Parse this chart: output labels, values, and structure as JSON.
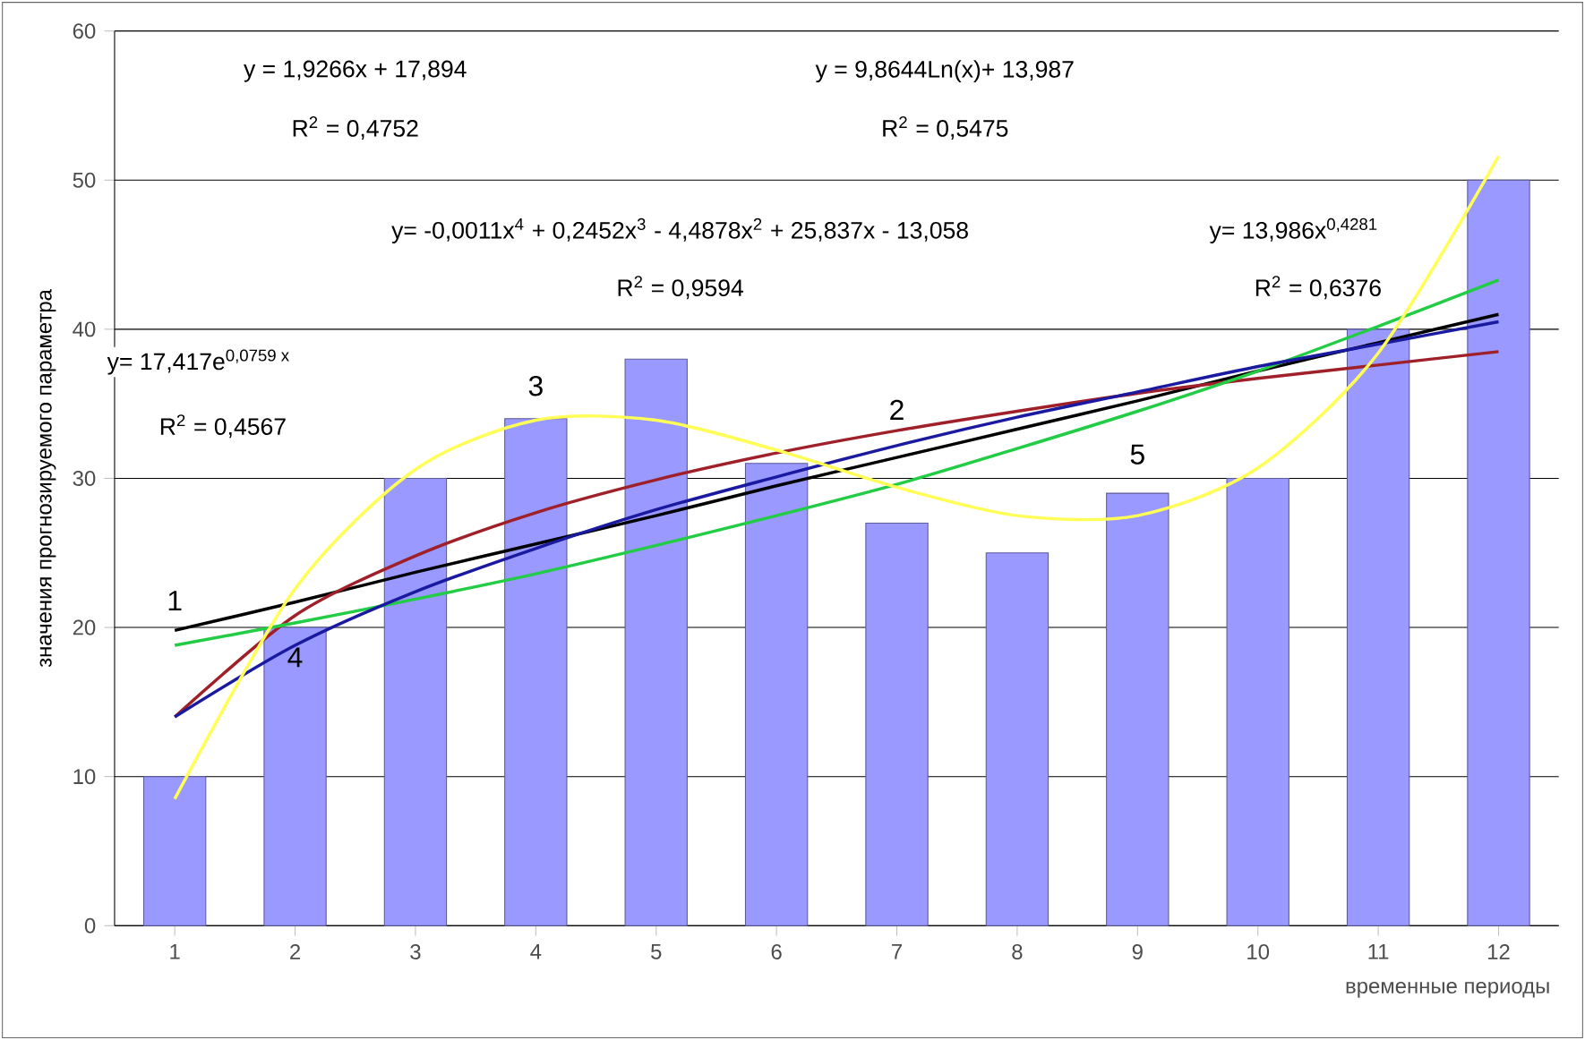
{
  "chart_data": {
    "type": "bar",
    "xlabel": "временные периоды",
    "ylabel": "значения прогнозируемого параметра",
    "categories": [
      "1",
      "2",
      "3",
      "4",
      "5",
      "6",
      "7",
      "8",
      "9",
      "10",
      "11",
      "12"
    ],
    "series": [
      {
        "color": "#9999ff",
        "values": [
          10,
          20,
          30,
          34,
          38,
          31,
          27,
          25,
          29,
          30,
          40,
          50
        ]
      },
      {
        "type": "line",
        "color": "#000000",
        "values": [
          19.8,
          21.7,
          23.7,
          25.6,
          27.5,
          29.5,
          31.4,
          33.3,
          35.2,
          37.2,
          39.1,
          41.0
        ]
      },
      {
        "type": "line",
        "color": "#a0202a",
        "values": [
          14.0,
          20.8,
          24.8,
          27.7,
          29.9,
          31.7,
          33.2,
          34.5,
          35.7,
          36.7,
          37.6,
          38.5
        ]
      },
      {
        "type": "line",
        "color": "#22cc44",
        "values": [
          18.8,
          20.3,
          21.9,
          23.6,
          25.5,
          27.5,
          29.6,
          32.0,
          34.5,
          37.2,
          40.2,
          43.3
        ]
      },
      {
        "type": "line",
        "color": "#1a1aa0",
        "values": [
          14.0,
          18.8,
          22.4,
          25.3,
          27.9,
          30.1,
          32.2,
          34.1,
          35.8,
          37.5,
          39.0,
          40.5
        ]
      },
      {
        "type": "line",
        "color": "#ffff55",
        "values": [
          8.5,
          22.6,
          30.6,
          33.9,
          33.9,
          31.9,
          29.4,
          27.5,
          27.5,
          30.7,
          38.4,
          51.6
        ]
      }
    ],
    "ylim": [
      0,
      60
    ],
    "yticks": [
      0,
      10,
      20,
      30,
      40,
      50,
      60
    ],
    "grid": "y",
    "marker": "none",
    "line_style": "solid",
    "annotations": [
      "y = 1,9266x + 17,894",
      "R$^{2}$ = 0,4752",
      "y = 9,8644Ln(x)+ 13,987",
      "R$^{2}$ = 0,5475",
      "y= -0,0011x$^{4}$ + 0,2452x$^{3}$ - 4,4878x$^{2}$ + 25,837x - 13,058",
      "R$^{2}$ = 0,9594",
      "y= 13,986x$^{0,4281}$",
      "R$^{2}$ = 0,6376",
      "y= 17,417e$^{0,0759 x}$",
      "R$^{2}$ = 0,4567",
      "1",
      "2",
      "3",
      "4",
      "5"
    ]
  }
}
